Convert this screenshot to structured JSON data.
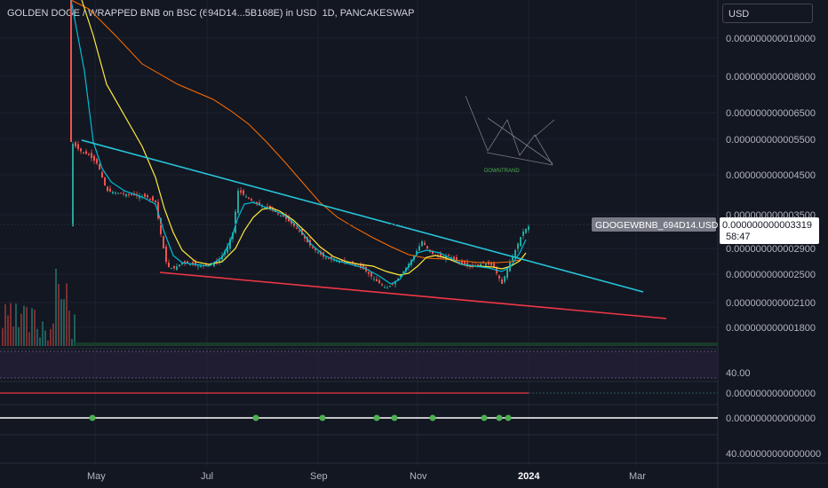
{
  "header": {
    "title": "GOLDEN DOGE / WRAPPED BNB on BSC (694D14...5B168E) in USD, 1D, PANCAKESWAP",
    "currency_button": "USD"
  },
  "annotation": {
    "text": "DOWNTRAND"
  },
  "price_label": {
    "symbol": "GDOGEWBNB_694D14.USD",
    "price": "0.000000000003319",
    "countdown": "58:47"
  },
  "pane_labels": {
    "rsi": "40.00",
    "macd": "0.000000000000000",
    "osc": "0.000000000000000",
    "bottom": "40.000000000000000"
  },
  "colors": {
    "background": "#131722",
    "up": "#26a69a",
    "down": "#ef5350",
    "ema_fast": "#00bcd4",
    "ema_mid": "#ffeb3b",
    "ema_slow": "#ff6d00",
    "trend_upper": "#26c6da",
    "trend_lower": "#f23645",
    "dots": "#4caf50"
  },
  "chart_data": {
    "type": "candlestick",
    "scale": "log",
    "x_ticks": [
      "May",
      "Jul",
      "Sep",
      "Nov",
      "2024",
      "Mar"
    ],
    "y_ticks": [
      "0.000000000010000",
      "0.000000000008000",
      "0.000000000006500",
      "0.000000000005500",
      "0.000000000004500",
      "0.000000000003500",
      "0.000000000002900",
      "0.000000000002500",
      "0.000000000002100",
      "0.000000000001800"
    ],
    "close_approx": [
      [
        "May",
        5.5e-12
      ],
      [
        "Jun",
        3.8e-12
      ],
      [
        "mid-Jun",
        2.5e-12
      ],
      [
        "Jul",
        2.6e-12
      ],
      [
        "mid-Jul",
        4e-12
      ],
      [
        "Aug",
        3.3e-12
      ],
      [
        "Sep",
        2.7e-12
      ],
      [
        "Oct",
        2.2e-12
      ],
      [
        "Nov",
        2.9e-12
      ],
      [
        "Dec",
        2.5e-12
      ],
      [
        "2024",
        3.319e-12
      ]
    ],
    "last_price": 3.319e-12,
    "trendlines": [
      "upper descending (cyan)",
      "lower descending (red)"
    ],
    "moving_averages": [
      "fast (cyan)",
      "mid (yellow)",
      "slow (orange)"
    ],
    "grid": true
  }
}
